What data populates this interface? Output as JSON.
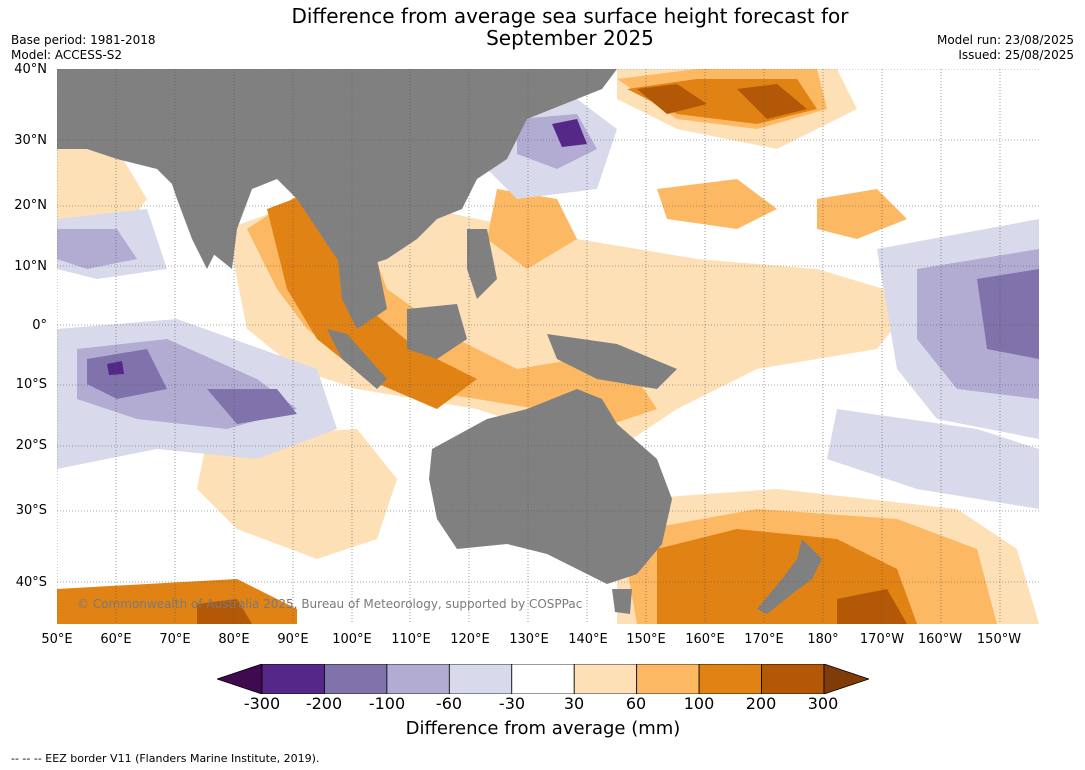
{
  "header": {
    "title_line1": "Difference from average sea surface height forecast for",
    "title_line2": "September 2025",
    "base_period": "Base period: 1981-2018",
    "model": "Model: ACCESS-S2",
    "model_run": "Model run: 23/08/2025",
    "issued": "Issued: 25/08/2025"
  },
  "map": {
    "lat_labels": [
      "40°N",
      "30°N",
      "20°N",
      "10°N",
      "0°",
      "10°S",
      "20°S",
      "30°S",
      "40°S"
    ],
    "lon_labels": [
      "50°E",
      "60°E",
      "70°E",
      "80°E",
      "90°E",
      "100°E",
      "110°E",
      "120°E",
      "130°E",
      "140°E",
      "150°E",
      "160°E",
      "170°E",
      "180°",
      "170°W",
      "160°W",
      "150°W"
    ],
    "copyright": "© Commonwealth of Australia 2025, Bureau of Meteorology, supported by COSPPac",
    "land_color": "#808080"
  },
  "colorbar": {
    "ticks": [
      "-300",
      "-200",
      "-100",
      "-60",
      "-30",
      "30",
      "60",
      "100",
      "200",
      "300"
    ],
    "colors": [
      "#3f0a4f",
      "#542788",
      "#8073ac",
      "#b2abd2",
      "#d8daeb",
      "#ffffff",
      "#fee0b6",
      "#fdb863",
      "#e08214",
      "#b35806",
      "#7f3b08"
    ],
    "label": "Difference from average (mm)"
  },
  "footnote": "--  --  -- EEZ border V11 (Flanders Marine Institute, 2019)."
}
